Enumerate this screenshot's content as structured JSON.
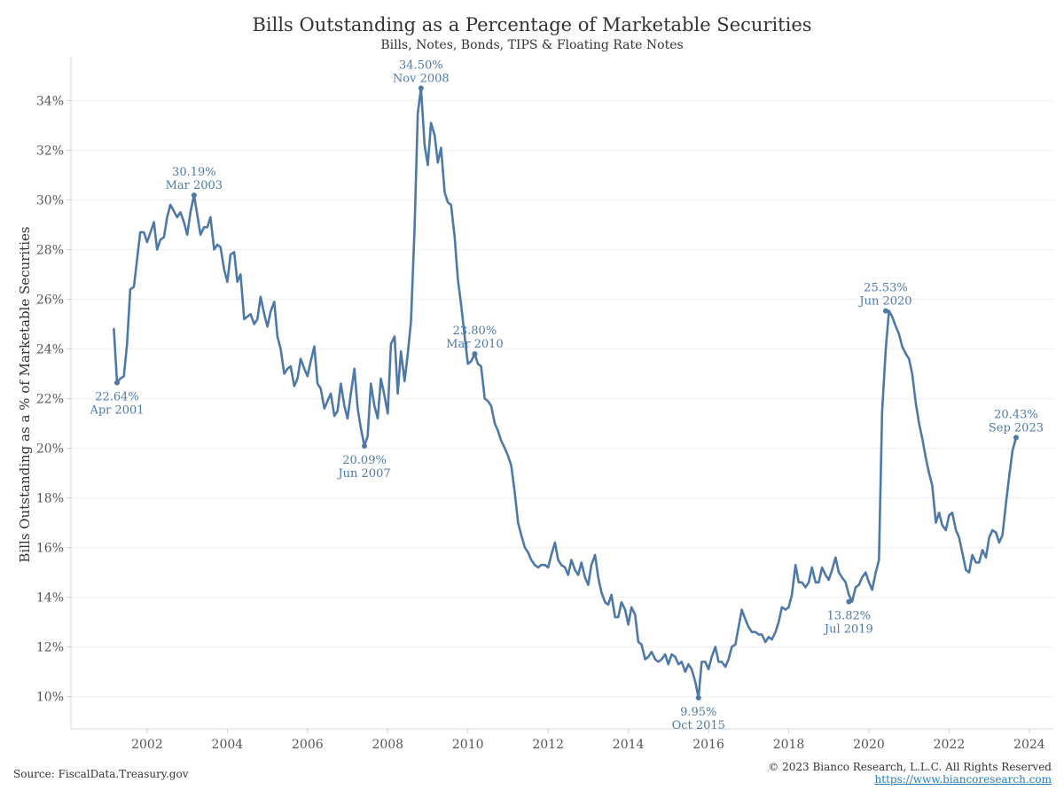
{
  "chart_data": {
    "type": "line",
    "title": "Bills Outstanding as a Percentage of Marketable Securities",
    "subtitle": "Bills, Notes, Bonds, TIPS & Floating Rate Notes",
    "ylabel": "Bills Outstanding as a % of Marketable Securities",
    "xlabel": "",
    "xlim": [
      2000.1,
      2024.6
    ],
    "ylim": [
      8.7,
      35.8
    ],
    "x_ticks": [
      "2002",
      "2004",
      "2006",
      "2008",
      "2010",
      "2012",
      "2014",
      "2016",
      "2018",
      "2020",
      "2022",
      "2024"
    ],
    "y_ticks": [
      "10%",
      "12%",
      "14%",
      "16%",
      "18%",
      "20%",
      "22%",
      "24%",
      "26%",
      "28%",
      "30%",
      "32%",
      "34%"
    ],
    "grid": "horizontal",
    "line_color": "#4e79a7",
    "series": [
      {
        "x": [
          2001.17,
          2001.25,
          2001.33,
          2001.42,
          2001.5,
          2001.58,
          2001.67,
          2001.83,
          2001.92,
          2002.0,
          2002.17,
          2002.25,
          2002.33,
          2002.42,
          2002.5,
          2002.58,
          2002.75,
          2002.83,
          2002.92,
          2003.0,
          2003.08,
          2003.17,
          2003.25,
          2003.33,
          2003.42,
          2003.5,
          2003.58,
          2003.67,
          2003.75,
          2003.83,
          2003.92,
          2004.0,
          2004.08,
          2004.17,
          2004.25,
          2004.33,
          2004.42,
          2004.5,
          2004.58,
          2004.67,
          2004.75,
          2004.83,
          2004.92,
          2005.0,
          2005.08,
          2005.17,
          2005.25,
          2005.33,
          2005.42,
          2005.5,
          2005.58,
          2005.67,
          2005.75,
          2005.83,
          2005.92,
          2006.0,
          2006.08,
          2006.17,
          2006.25,
          2006.33,
          2006.42,
          2006.5,
          2006.58,
          2006.67,
          2006.75,
          2006.83,
          2006.92,
          2007.0,
          2007.08,
          2007.17,
          2007.25,
          2007.33,
          2007.42,
          2007.5,
          2007.58,
          2007.67,
          2007.75,
          2007.83,
          2007.92,
          2008.0,
          2008.08,
          2008.17,
          2008.25,
          2008.33,
          2008.42,
          2008.5,
          2008.58,
          2008.67,
          2008.75,
          2008.83,
          2008.92,
          2009.0,
          2009.08,
          2009.17,
          2009.25,
          2009.33,
          2009.42,
          2009.5,
          2009.58,
          2009.67,
          2009.75,
          2009.83,
          2009.92,
          2010.0,
          2010.08,
          2010.17,
          2010.25,
          2010.33,
          2010.42,
          2010.5,
          2010.58,
          2010.67,
          2010.75,
          2010.83,
          2010.92,
          2011.0,
          2011.08,
          2011.17,
          2011.25,
          2011.33,
          2011.42,
          2011.5,
          2011.58,
          2011.67,
          2011.75,
          2011.83,
          2011.92,
          2012.0,
          2012.08,
          2012.17,
          2012.25,
          2012.33,
          2012.42,
          2012.5,
          2012.58,
          2012.67,
          2012.75,
          2012.83,
          2012.92,
          2013.0,
          2013.08,
          2013.17,
          2013.25,
          2013.33,
          2013.42,
          2013.5,
          2013.58,
          2013.67,
          2013.75,
          2013.83,
          2013.92,
          2014.0,
          2014.08,
          2014.17,
          2014.25,
          2014.33,
          2014.42,
          2014.5,
          2014.58,
          2014.67,
          2014.75,
          2014.83,
          2014.92,
          2015.0,
          2015.08,
          2015.17,
          2015.25,
          2015.33,
          2015.42,
          2015.5,
          2015.58,
          2015.67,
          2015.75,
          2015.83,
          2015.92,
          2016.0,
          2016.08,
          2016.17,
          2016.25,
          2016.33,
          2016.42,
          2016.5,
          2016.58,
          2016.67,
          2016.75,
          2016.83,
          2016.92,
          2017.0,
          2017.08,
          2017.17,
          2017.25,
          2017.33,
          2017.42,
          2017.5,
          2017.58,
          2017.67,
          2017.75,
          2017.83,
          2017.92,
          2018.0,
          2018.08,
          2018.17,
          2018.25,
          2018.33,
          2018.42,
          2018.5,
          2018.58,
          2018.67,
          2018.75,
          2018.83,
          2018.92,
          2019.0,
          2019.08,
          2019.17,
          2019.25,
          2019.33,
          2019.42,
          2019.5,
          2019.58,
          2019.67,
          2019.75,
          2019.83,
          2019.92,
          2020.0,
          2020.08,
          2020.17,
          2020.25,
          2020.33,
          2020.42,
          2020.5,
          2020.58,
          2020.67,
          2020.75,
          2020.83,
          2020.92,
          2021.0,
          2021.08,
          2021.17,
          2021.25,
          2021.33,
          2021.42,
          2021.5,
          2021.58,
          2021.67,
          2021.75,
          2021.83,
          2021.92,
          2022.0,
          2022.08,
          2022.17,
          2022.25,
          2022.33,
          2022.42,
          2022.5,
          2022.58,
          2022.67,
          2022.75,
          2022.83,
          2022.92,
          2023.0,
          2023.08,
          2023.17,
          2023.25,
          2023.33,
          2023.42,
          2023.5,
          2023.58,
          2023.67
        ],
        "y": [
          24.8,
          22.64,
          22.8,
          22.9,
          24.2,
          26.4,
          26.5,
          28.7,
          28.7,
          28.3,
          29.1,
          28.0,
          28.4,
          28.5,
          29.3,
          29.8,
          29.3,
          29.5,
          29.1,
          28.6,
          29.5,
          30.19,
          29.4,
          28.6,
          28.9,
          28.9,
          29.3,
          28.0,
          28.2,
          28.1,
          27.2,
          26.7,
          27.8,
          27.9,
          26.7,
          27.0,
          25.2,
          25.3,
          25.4,
          25.0,
          25.2,
          26.1,
          25.4,
          24.9,
          25.5,
          25.9,
          24.5,
          24.0,
          23.0,
          23.2,
          23.3,
          22.5,
          22.8,
          23.6,
          23.2,
          22.9,
          23.5,
          24.1,
          22.6,
          22.4,
          21.6,
          21.9,
          22.2,
          21.3,
          21.5,
          22.6,
          21.7,
          21.2,
          22.2,
          23.2,
          21.6,
          20.8,
          20.09,
          20.5,
          22.6,
          21.7,
          21.2,
          22.8,
          22.1,
          21.4,
          24.2,
          24.5,
          22.2,
          23.9,
          22.7,
          23.8,
          25.1,
          28.9,
          33.5,
          34.5,
          32.2,
          31.4,
          33.1,
          32.6,
          31.5,
          32.1,
          30.3,
          29.9,
          29.8,
          28.5,
          26.8,
          25.8,
          24.5,
          23.4,
          23.5,
          23.8,
          23.4,
          23.3,
          22.0,
          21.9,
          21.7,
          21.0,
          20.7,
          20.3,
          20.0,
          19.7,
          19.3,
          18.2,
          17.0,
          16.5,
          16.0,
          15.8,
          15.5,
          15.3,
          15.2,
          15.3,
          15.3,
          15.2,
          15.7,
          16.2,
          15.5,
          15.3,
          15.2,
          14.9,
          15.5,
          15.1,
          14.9,
          15.4,
          14.8,
          14.5,
          15.3,
          15.7,
          14.8,
          14.2,
          13.8,
          13.7,
          14.1,
          13.2,
          13.2,
          13.8,
          13.5,
          12.9,
          13.6,
          13.3,
          12.2,
          12.1,
          11.5,
          11.6,
          11.8,
          11.5,
          11.4,
          11.5,
          11.7,
          11.3,
          11.7,
          11.6,
          11.3,
          11.4,
          11.0,
          11.3,
          11.1,
          10.6,
          9.95,
          11.4,
          11.4,
          11.1,
          11.6,
          12.0,
          11.4,
          11.4,
          11.2,
          11.5,
          12.0,
          12.1,
          12.8,
          13.5,
          13.1,
          12.8,
          12.6,
          12.6,
          12.5,
          12.5,
          12.2,
          12.4,
          12.3,
          12.6,
          13.0,
          13.6,
          13.5,
          13.6,
          14.1,
          15.3,
          14.6,
          14.6,
          14.4,
          14.6,
          15.2,
          14.6,
          14.6,
          15.2,
          14.9,
          14.7,
          15.1,
          15.6,
          15.0,
          14.8,
          14.6,
          14.1,
          13.82,
          14.4,
          14.5,
          14.8,
          15.0,
          14.6,
          14.3,
          15.0,
          15.5,
          21.5,
          24.0,
          25.53,
          25.3,
          24.9,
          24.6,
          24.1,
          23.8,
          23.6,
          23.0,
          21.8,
          21.0,
          20.4,
          19.6,
          19.0,
          18.5,
          17.0,
          17.4,
          16.9,
          16.7,
          17.3,
          17.4,
          16.7,
          16.4,
          15.8,
          15.1,
          15.0,
          15.7,
          15.4,
          15.4,
          15.9,
          15.6,
          16.4,
          16.7,
          16.6,
          16.2,
          16.5,
          17.8,
          18.9,
          19.9,
          20.43
        ]
      }
    ],
    "annotations": [
      {
        "x": 2001.25,
        "y": 22.64,
        "value": "22.64%",
        "date": "Apr 2001",
        "pos": "below"
      },
      {
        "x": 2003.17,
        "y": 30.19,
        "value": "30.19%",
        "date": "Mar 2003",
        "pos": "above"
      },
      {
        "x": 2007.42,
        "y": 20.09,
        "value": "20.09%",
        "date": "Jun 2007",
        "pos": "below"
      },
      {
        "x": 2008.83,
        "y": 34.5,
        "value": "34.50%",
        "date": "Nov 2008",
        "pos": "above"
      },
      {
        "x": 2010.17,
        "y": 23.8,
        "value": "23.80%",
        "date": "Mar 2010",
        "pos": "above"
      },
      {
        "x": 2015.75,
        "y": 9.95,
        "value": "9.95%",
        "date": "Oct 2015",
        "pos": "below"
      },
      {
        "x": 2019.5,
        "y": 13.82,
        "value": "13.82%",
        "date": "Jul 2019",
        "pos": "below"
      },
      {
        "x": 2020.42,
        "y": 25.53,
        "value": "25.53%",
        "date": "Jun 2020",
        "pos": "above"
      },
      {
        "x": 2023.67,
        "y": 20.43,
        "value": "20.43%",
        "date": "Sep 2023",
        "pos": "above"
      }
    ]
  },
  "footer": {
    "source": "Source: FiscalData.Treasury.gov",
    "copyright": "© 2023 Bianco Research, L.L.C. All Rights Reserved",
    "website": "https://www.biancoresearch.com"
  }
}
